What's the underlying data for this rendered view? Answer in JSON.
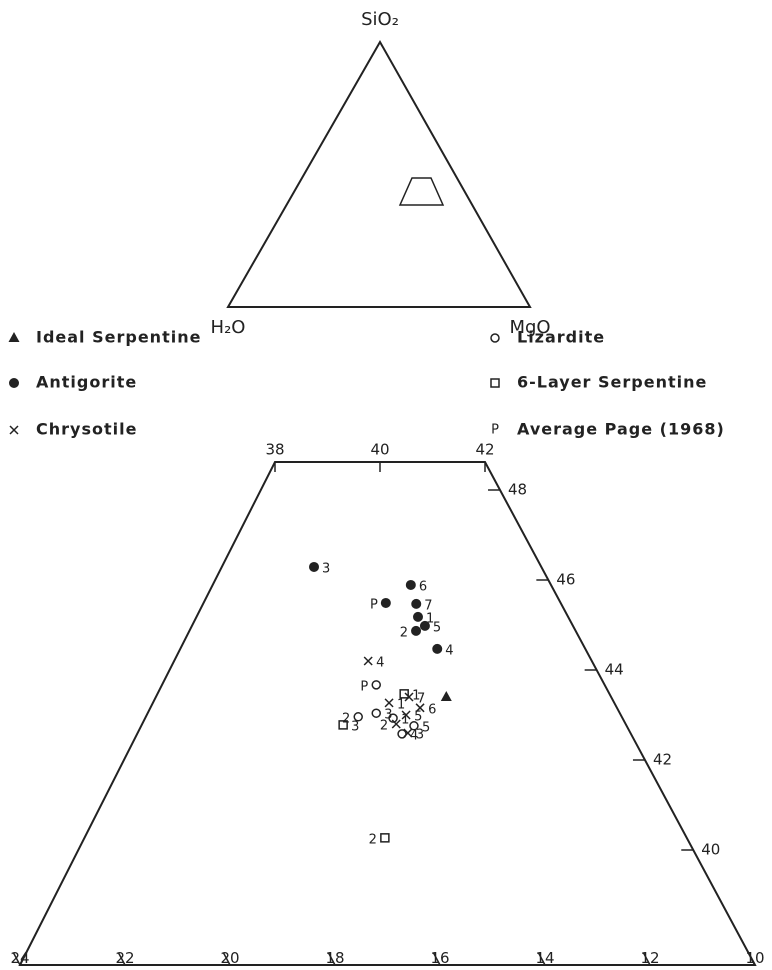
{
  "chart_data": {
    "type": "ternary",
    "apex_labels": {
      "top": "SiO₂",
      "left": "H₂O",
      "right": "MgO"
    },
    "xlim": [
      24,
      10
    ],
    "xticks": [
      24,
      22,
      20,
      18,
      16,
      14,
      12,
      10
    ],
    "ylim": [
      38,
      48
    ],
    "yticks": [
      40,
      42,
      44,
      46,
      48
    ],
    "x2lim": [
      38,
      42
    ],
    "x2ticks": [
      38,
      40,
      42
    ],
    "color": "#222222",
    "series": [
      {
        "name": "Ideal Serpentine",
        "marker": "triangle",
        "points": [
          {
            "x": 13.14,
            "y": 43.4
          }
        ]
      },
      {
        "name": "Antigorite",
        "marker": "filled-circle",
        "points": [
          {
            "label": "3",
            "x": 14.33,
            "y": 46.29
          },
          {
            "label": "6",
            "x": 12.67,
            "y": 45.89
          },
          {
            "label": "7",
            "x": 12.76,
            "y": 45.47
          },
          {
            "label": "P",
            "x": 13.33,
            "y": 45.49
          },
          {
            "label": "1",
            "x": 12.86,
            "y": 45.18
          },
          {
            "label": "5",
            "x": 12.82,
            "y": 44.98
          },
          {
            "label": "2",
            "x": 13.04,
            "y": 44.87
          },
          {
            "label": "4",
            "x": 12.82,
            "y": 44.47
          }
        ]
      },
      {
        "name": "Chrysotile",
        "marker": "cross",
        "points": [
          {
            "label": "4",
            "x": 14.26,
            "y": 44.2
          },
          {
            "label": "7",
            "x": 13.85,
            "y": 43.4
          },
          {
            "label": "1",
            "x": 14.29,
            "y": 43.27
          },
          {
            "label": "6",
            "x": 13.75,
            "y": 43.16
          },
          {
            "label": "5",
            "x": 14.09,
            "y": 43.0
          },
          {
            "label": "2",
            "x": 14.37,
            "y": 42.8
          },
          {
            "label": "3",
            "x": 14.24,
            "y": 42.6
          }
        ]
      },
      {
        "name": "Lizardite",
        "marker": "open-circle",
        "points": [
          {
            "label": "P",
            "x": 14.35,
            "y": 43.67
          },
          {
            "label": "2",
            "x": 15.02,
            "y": 42.96
          },
          {
            "label": "3",
            "x": 14.64,
            "y": 43.04
          },
          {
            "label": "1",
            "x": 14.37,
            "y": 42.93
          },
          {
            "label": "5",
            "x": 14.05,
            "y": 42.76
          },
          {
            "label": "4",
            "x": 14.36,
            "y": 42.58
          }
        ]
      },
      {
        "name": "6-Layer Serpentine",
        "marker": "square",
        "points": [
          {
            "label": "3",
            "x": 15.39,
            "y": 42.78
          },
          {
            "label": "1",
            "x": 13.91,
            "y": 43.47
          },
          {
            "label": "2",
            "x": 15.75,
            "y": 40.27
          }
        ]
      }
    ],
    "legend_extra": {
      "symbol": "P",
      "name": "Average Page (1968)"
    }
  }
}
